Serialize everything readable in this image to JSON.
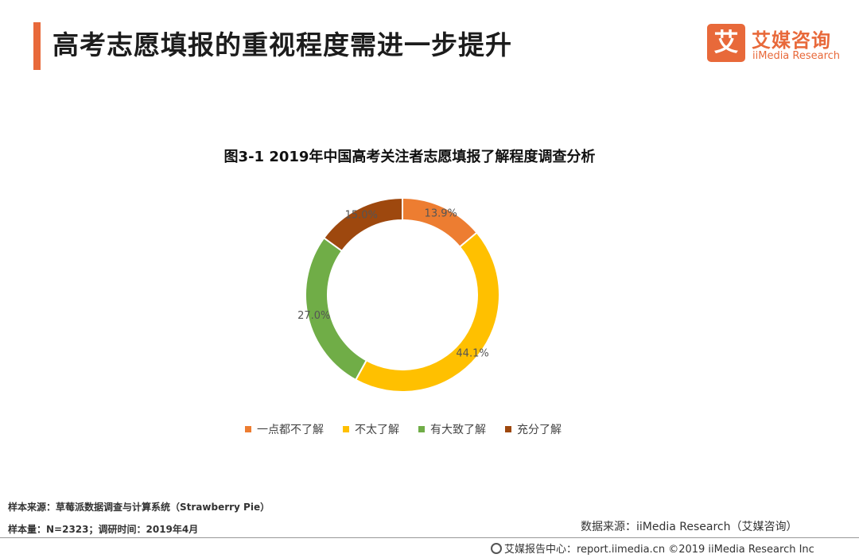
{
  "header": {
    "title": "高考志愿填报的重视程度需进一步提升",
    "accent_color": "#E8693A"
  },
  "logo": {
    "mark": "艾",
    "name": "艾媒咨询",
    "sub": "iiMedia Research",
    "color": "#E8693A"
  },
  "chart_data": {
    "type": "pie",
    "variant": "donut",
    "title": "图3-1 2019年中国高考关注者志愿填报了解程度调查分析",
    "categories": [
      "一点都不了解",
      "不太了解",
      "有大致了解",
      "充分了解"
    ],
    "values": [
      13.9,
      44.1,
      27.0,
      15.0
    ],
    "labels": [
      "13.9%",
      "44.1%",
      "27.0%",
      "15.0%"
    ],
    "colors": [
      "#ED7D31",
      "#FFC000",
      "#70AD47",
      "#9E480E"
    ],
    "legend_position": "bottom"
  },
  "notes": {
    "sample_source": "样本来源：草莓派数据调查与计算系统（Strawberry Pie）",
    "sample_size": "样本量：N=2323；调研时间：2019年4月",
    "data_source": "数据来源：iiMedia Research（艾媒咨询）"
  },
  "footer": {
    "text": "艾媒报告中心：report.iimedia.cn ©2019 iiMedia Research Inc"
  }
}
